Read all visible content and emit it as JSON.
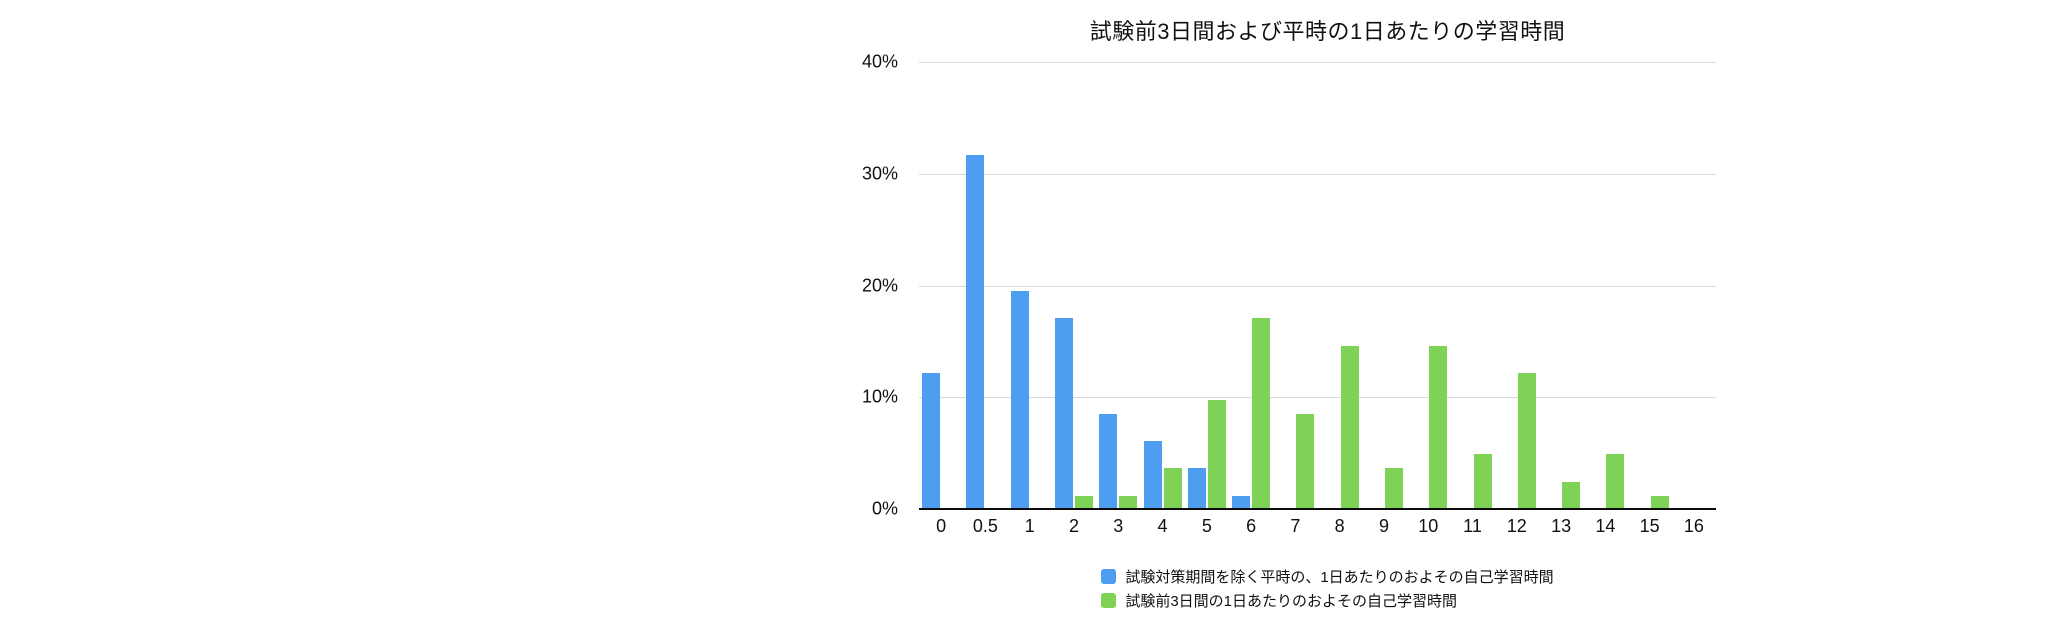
{
  "chart_data": {
    "type": "bar",
    "title": "試験前3日間および平時の1日あたりの学習時間",
    "categories": [
      "0",
      "0.5",
      "1",
      "2",
      "3",
      "4",
      "5",
      "6",
      "7",
      "8",
      "9",
      "10",
      "11",
      "12",
      "13",
      "14",
      "15",
      "16"
    ],
    "series": [
      {
        "name": "試験対策期間を除く平時の、1日あたりのおよその自己学習時間",
        "color": "#4D9DF0",
        "values": [
          12.2,
          31.7,
          19.5,
          17.1,
          8.5,
          6.1,
          3.7,
          1.2,
          0,
          0,
          0,
          0,
          0,
          0,
          0,
          0,
          0,
          0
        ]
      },
      {
        "name": "試験前3日間の1日あたりのおよその自己学習時間",
        "color": "#7ED356",
        "values": [
          0,
          0,
          0,
          1.2,
          1.2,
          3.7,
          9.8,
          17.1,
          8.5,
          14.6,
          3.7,
          14.6,
          4.9,
          12.2,
          2.4,
          4.9,
          1.2,
          0
        ]
      }
    ],
    "xlabel": "",
    "ylabel": "",
    "y_ticks": [
      "40%",
      "30%",
      "20%",
      "10%",
      "0%"
    ],
    "ylim": [
      0,
      40
    ],
    "grid": true,
    "legend_position": "bottom",
    "colors": {
      "gridline": "#d9d9d9",
      "axis_line": "#0b0b0b",
      "text": "#111111",
      "background": "#ffffff"
    }
  }
}
